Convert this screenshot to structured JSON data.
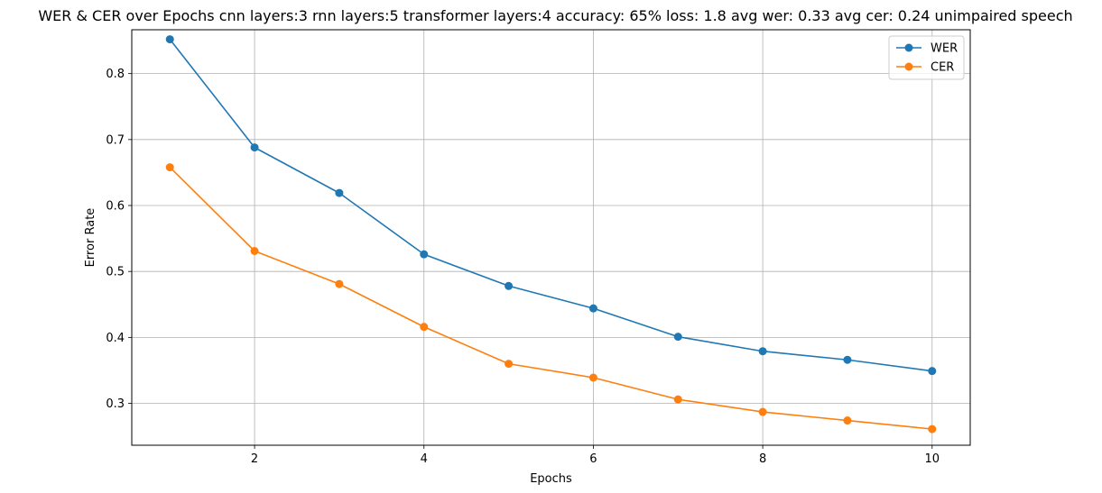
{
  "chart_data": {
    "type": "line",
    "title": "WER & CER over Epochs cnn layers:3 rnn layers:5 transformer layers:4 accuracy: 65% loss: 1.8 avg wer: 0.33 avg cer: 0.24 unimpaired speech",
    "xlabel": "Epochs",
    "ylabel": "Error Rate",
    "x": [
      1,
      2,
      3,
      4,
      5,
      6,
      7,
      8,
      9,
      10
    ],
    "xlim": [
      0.55,
      10.45
    ],
    "ylim": [
      0.2365,
      0.8665
    ],
    "xticks": [
      2,
      4,
      6,
      8,
      10
    ],
    "xtick_labels": [
      "2",
      "4",
      "6",
      "8",
      "10"
    ],
    "yticks": [
      0.3,
      0.4,
      0.5,
      0.6,
      0.7,
      0.8
    ],
    "ytick_labels": [
      "0.3",
      "0.4",
      "0.5",
      "0.6",
      "0.7",
      "0.8"
    ],
    "grid": true,
    "legend_position": "top-right",
    "series": [
      {
        "name": "WER",
        "color": "#1f77b4",
        "marker": "circle",
        "values": [
          0.852,
          0.688,
          0.619,
          0.526,
          0.478,
          0.444,
          0.401,
          0.379,
          0.366,
          0.349
        ]
      },
      {
        "name": "CER",
        "color": "#ff7f0e",
        "marker": "circle",
        "values": [
          0.658,
          0.531,
          0.481,
          0.416,
          0.36,
          0.339,
          0.306,
          0.287,
          0.274,
          0.261
        ]
      }
    ]
  }
}
